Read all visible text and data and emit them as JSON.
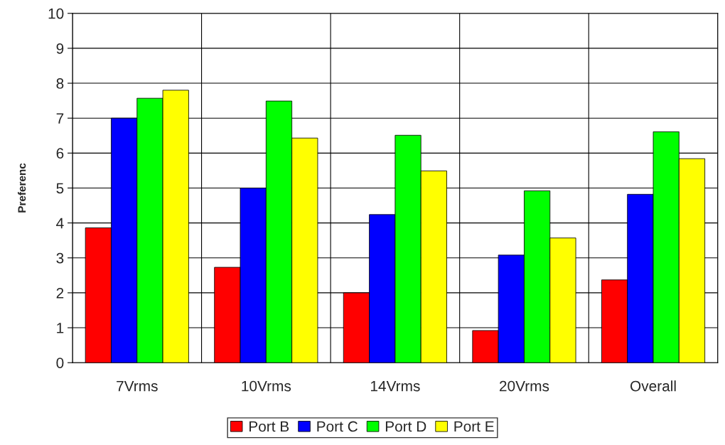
{
  "chart_data": {
    "type": "bar",
    "ylabel": "Preferenc",
    "categories": [
      "7Vrms",
      "10Vrms",
      "14Vrms",
      "20Vrms",
      "Overall"
    ],
    "series": [
      {
        "name": "Port B",
        "color": "#ff0000",
        "values": [
          3.86,
          2.73,
          2.0,
          0.92,
          2.37
        ]
      },
      {
        "name": "Port C",
        "color": "#0000ff",
        "values": [
          7.0,
          5.0,
          4.24,
          3.08,
          4.82
        ]
      },
      {
        "name": "Port D",
        "color": "#00ff00",
        "values": [
          7.57,
          7.49,
          6.51,
          4.92,
          6.61
        ]
      },
      {
        "name": "Port E",
        "color": "#ffff00",
        "values": [
          7.8,
          6.43,
          5.49,
          3.57,
          5.84
        ]
      }
    ],
    "ylim": [
      0,
      10
    ],
    "yticks": [
      0,
      1,
      2,
      3,
      4,
      5,
      6,
      7,
      8,
      9,
      10
    ],
    "grid": true,
    "legend": "bottom"
  }
}
